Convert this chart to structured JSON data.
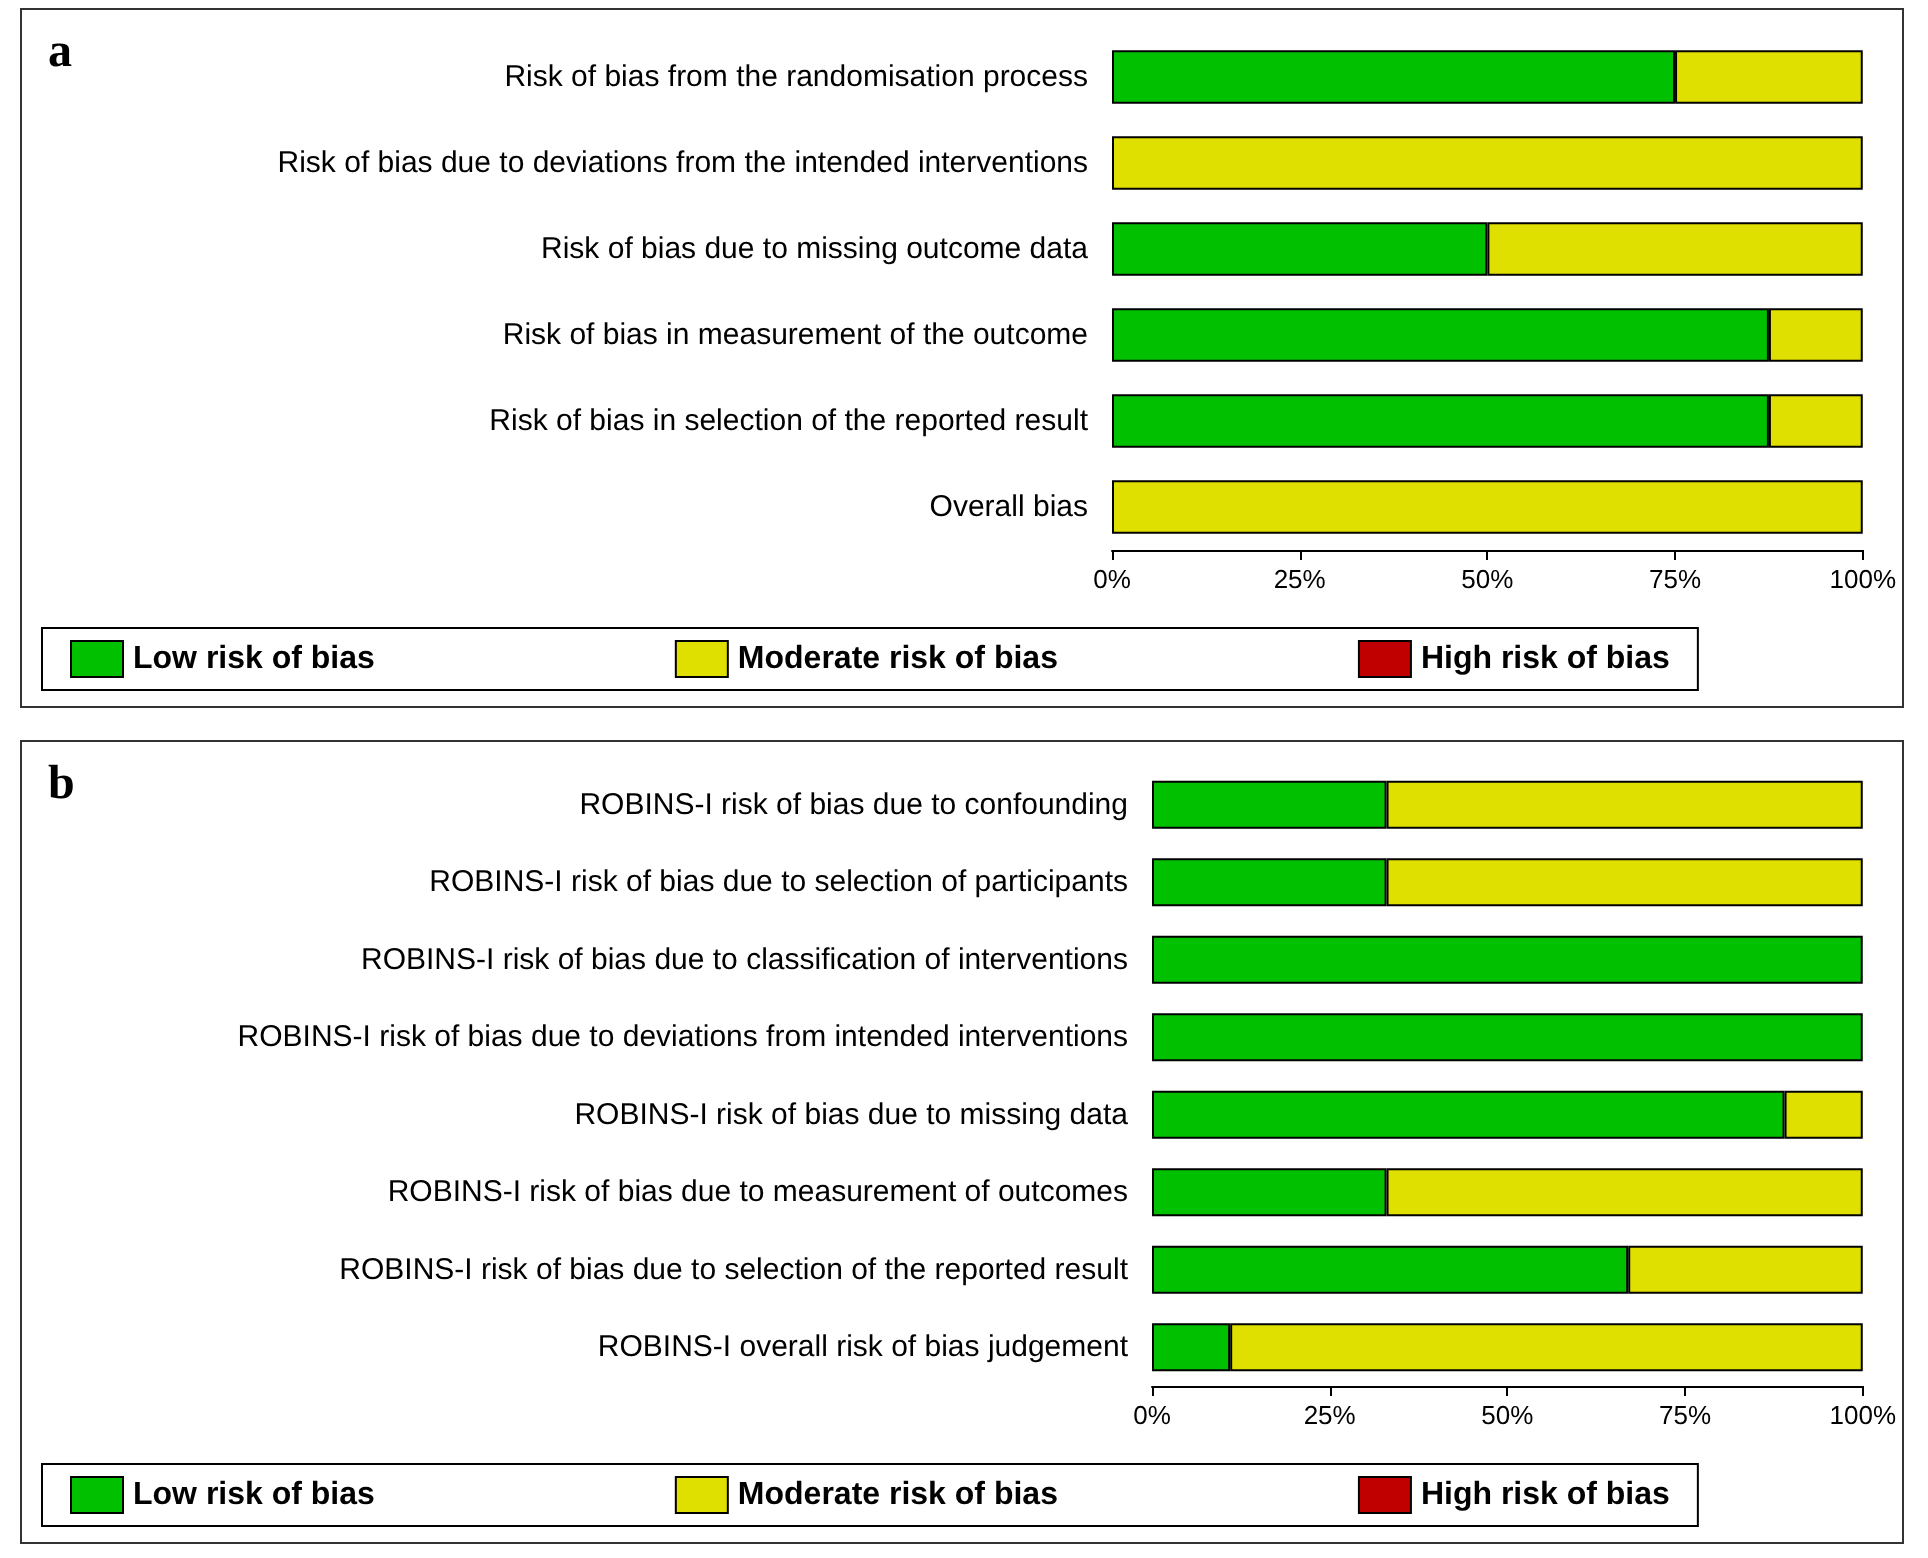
{
  "chart_data": [
    {
      "type": "bar",
      "title": "a",
      "orientation": "horizontal",
      "stacked": true,
      "categories": [
        "Risk of bias from the randomisation process",
        "Risk of bias due to deviations from the intended interventions",
        "Risk of bias due to missing outcome data",
        "Risk of bias in measurement of the outcome",
        "Risk of bias in selection of the reported result",
        "Overall bias"
      ],
      "series": [
        {
          "name": "Low risk of bias",
          "color": "#00c000",
          "values": [
            75,
            0,
            50,
            87.5,
            87.5,
            0
          ]
        },
        {
          "name": "Moderate risk of bias",
          "color": "#e0e000",
          "values": [
            25,
            100,
            50,
            12.5,
            12.5,
            100
          ]
        },
        {
          "name": "High risk of bias",
          "color": "#c00000",
          "values": [
            0,
            0,
            0,
            0,
            0,
            0
          ]
        }
      ],
      "xlim": [
        0,
        100
      ],
      "xticks": [
        {
          "value": 0,
          "label": "0%"
        },
        {
          "value": 25,
          "label": "25%"
        },
        {
          "value": 50,
          "label": "50%"
        },
        {
          "value": 75,
          "label": "75%"
        },
        {
          "value": 100,
          "label": "100%"
        }
      ],
      "grid": false,
      "legend": "bottom"
    },
    {
      "type": "bar",
      "title": "b",
      "orientation": "horizontal",
      "stacked": true,
      "categories": [
        "ROBINS-I risk of bias due to confounding",
        "ROBINS-I risk of bias due to selection of participants",
        "ROBINS-I risk of bias due to classification of interventions",
        "ROBINS-I risk of bias due to deviations from intended interventions",
        "ROBINS-I risk of bias due to missing data",
        "ROBINS-I risk of bias due to measurement of outcomes",
        "ROBINS-I risk of bias due to selection of the reported result",
        "ROBINS-I overall risk of bias judgement"
      ],
      "series": [
        {
          "name": "Low risk of bias",
          "color": "#00c000",
          "values": [
            33,
            33,
            100,
            100,
            89,
            33,
            67,
            11
          ]
        },
        {
          "name": "Moderate risk of bias",
          "color": "#e0e000",
          "values": [
            67,
            67,
            0,
            0,
            11,
            67,
            33,
            89
          ]
        },
        {
          "name": "High risk of bias",
          "color": "#c00000",
          "values": [
            0,
            0,
            0,
            0,
            0,
            0,
            0,
            0
          ]
        }
      ],
      "xlim": [
        0,
        100
      ],
      "xticks": [
        {
          "value": 0,
          "label": "0%"
        },
        {
          "value": 25,
          "label": "25%"
        },
        {
          "value": 50,
          "label": "50%"
        },
        {
          "value": 75,
          "label": "75%"
        },
        {
          "value": 100,
          "label": "100%"
        }
      ],
      "grid": false,
      "legend": "bottom"
    }
  ]
}
